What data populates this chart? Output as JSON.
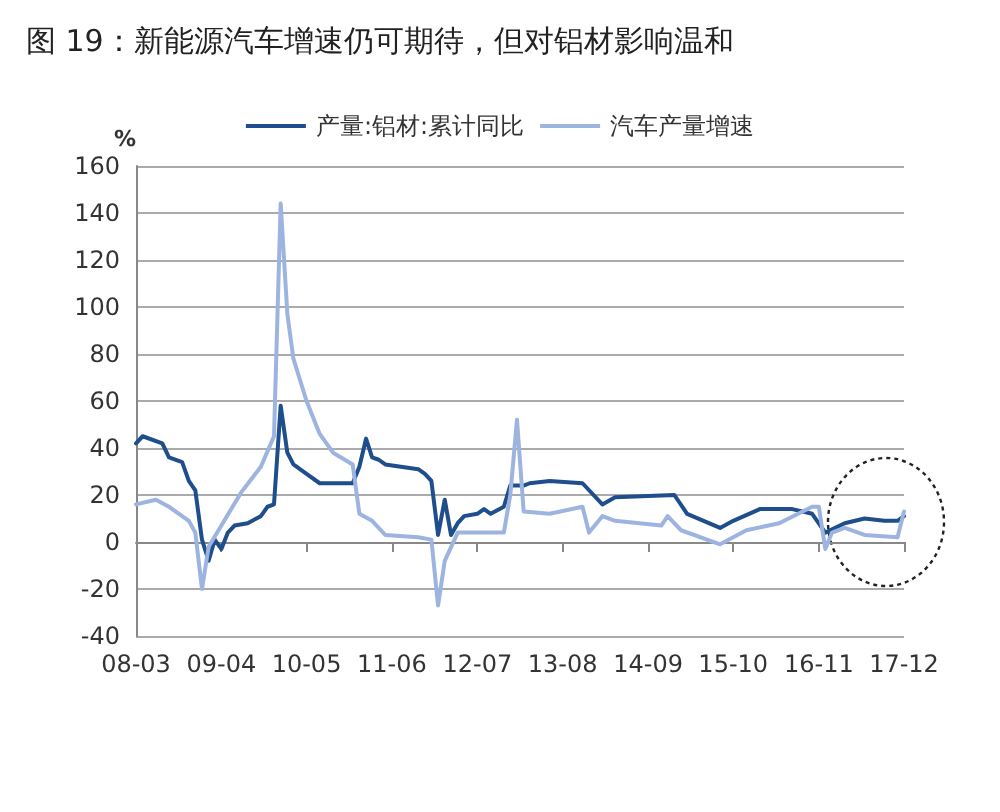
{
  "chart_data": {
    "type": "line",
    "title": "图 19：新能源汽车增速仍可期待，但对铝材影响温和",
    "ylabel": "%",
    "xlim": [
      "2008-03",
      "2017-12"
    ],
    "xticks": [
      {
        "value": "2008-03",
        "label": "08-03"
      },
      {
        "value": "2009-04",
        "label": "09-04"
      },
      {
        "value": "2010-05",
        "label": "10-05"
      },
      {
        "value": "2011-06",
        "label": "11-06"
      },
      {
        "value": "2012-07",
        "label": "12-07"
      },
      {
        "value": "2013-08",
        "label": "13-08"
      },
      {
        "value": "2014-09",
        "label": "14-09"
      },
      {
        "value": "2015-10",
        "label": "15-10"
      },
      {
        "value": "2016-11",
        "label": "16-11"
      },
      {
        "value": "2017-12",
        "label": "17-12"
      }
    ],
    "ylim": [
      -40,
      160
    ],
    "yticks": [
      -40,
      -20,
      0,
      20,
      40,
      60,
      80,
      100,
      120,
      140,
      160
    ],
    "grid": "y",
    "legend": "top",
    "marker": "none",
    "line_style": "solid",
    "series": [
      {
        "name": "产量:铝材:累计同比",
        "color": "#1f4e8c",
        "x": [
          "2008-03",
          "2008-04",
          "2008-07",
          "2008-08",
          "2008-10",
          "2008-11",
          "2008-12",
          "2009-01",
          "2009-02",
          "2009-03",
          "2009-04",
          "2009-05",
          "2009-06",
          "2009-08",
          "2009-10",
          "2009-11",
          "2009-12",
          "2010-01",
          "2010-02",
          "2010-03",
          "2010-05",
          "2010-07",
          "2010-12",
          "2011-01",
          "2011-02",
          "2011-03",
          "2011-04",
          "2011-05",
          "2011-10",
          "2011-11",
          "2011-12",
          "2012-01",
          "2012-02",
          "2012-03",
          "2012-04",
          "2012-05",
          "2012-07",
          "2012-08",
          "2012-09",
          "2012-11",
          "2012-12",
          "2013-02",
          "2013-03",
          "2013-06",
          "2013-11",
          "2014-02",
          "2014-04",
          "2015-01",
          "2015-03",
          "2015-08",
          "2015-10",
          "2016-02",
          "2016-07",
          "2016-10",
          "2016-12",
          "2017-03",
          "2017-06",
          "2017-09",
          "2017-11",
          "2017-12"
        ],
        "values": [
          42,
          45,
          42,
          36,
          34,
          26,
          22,
          1,
          -8,
          1,
          -3,
          4,
          7,
          8,
          11,
          15,
          16,
          58,
          38,
          33,
          29,
          25,
          25,
          32,
          44,
          36,
          35,
          33,
          31,
          29,
          26,
          3,
          18,
          3,
          8,
          11,
          12,
          14,
          12,
          15,
          24,
          24,
          25,
          26,
          25,
          16,
          19,
          20,
          12,
          6,
          9,
          14,
          14,
          12,
          4,
          8,
          10,
          9,
          9,
          11
        ]
      },
      {
        "name": "汽车产量增速",
        "color": "#9db4e0",
        "x": [
          "2008-03",
          "2008-06",
          "2008-08",
          "2008-11",
          "2008-12",
          "2009-01",
          "2009-02",
          "2009-04",
          "2009-07",
          "2009-10",
          "2009-12",
          "2010-01",
          "2010-02",
          "2010-03",
          "2010-05",
          "2010-07",
          "2010-09",
          "2010-12",
          "2011-01",
          "2011-03",
          "2011-05",
          "2011-10",
          "2011-12",
          "2012-01",
          "2012-02",
          "2012-04",
          "2012-08",
          "2012-11",
          "2012-12",
          "2013-01",
          "2013-02",
          "2013-06",
          "2013-11",
          "2013-12",
          "2014-02",
          "2014-04",
          "2014-11",
          "2014-12",
          "2015-02",
          "2015-08",
          "2015-12",
          "2016-05",
          "2016-10",
          "2016-11",
          "2016-12",
          "2017-01",
          "2017-03",
          "2017-06",
          "2017-11",
          "2017-12"
        ],
        "values": [
          16,
          18,
          15,
          9,
          4,
          -20,
          -2,
          7,
          21,
          32,
          45,
          144,
          97,
          78,
          60,
          46,
          38,
          33,
          12,
          9,
          3,
          2,
          1,
          -27,
          -8,
          4,
          4,
          4,
          20,
          52,
          13,
          12,
          15,
          4,
          11,
          9,
          7,
          11,
          5,
          -1,
          5,
          8,
          15,
          15,
          -3,
          4,
          6,
          3,
          2,
          13
        ]
      }
    ]
  }
}
